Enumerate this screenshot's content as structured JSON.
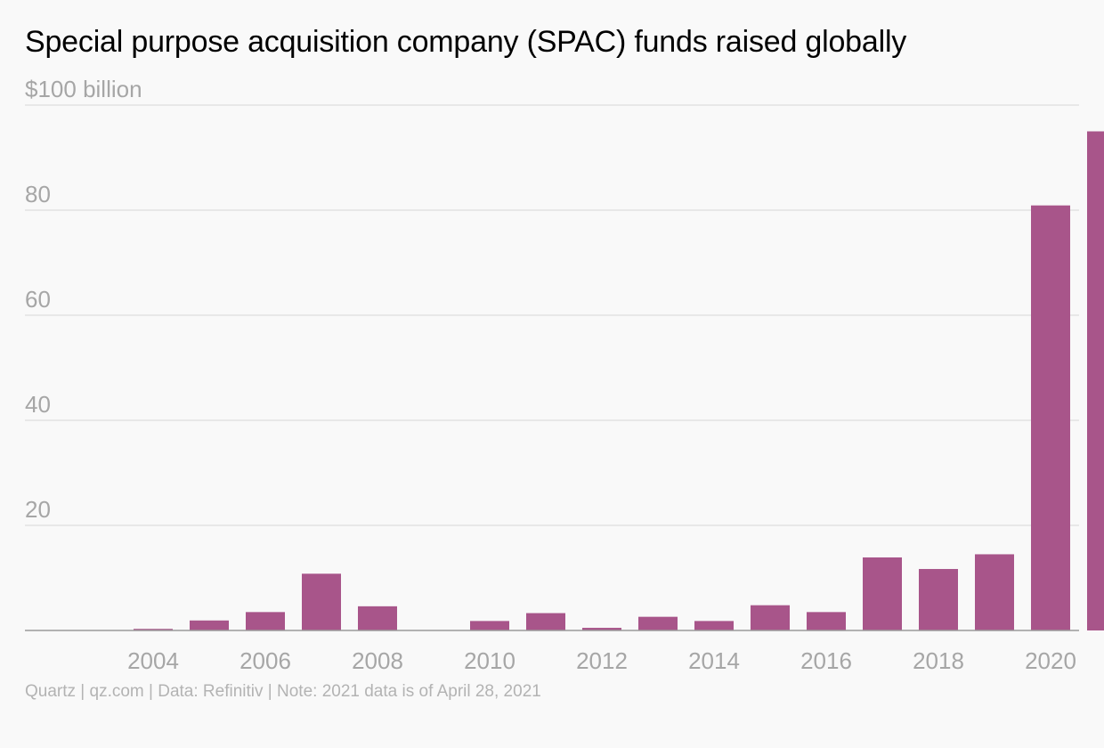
{
  "chart_data": {
    "type": "bar",
    "title": "Special purpose acquisition company (SPAC) funds raised globally",
    "ylabel": "",
    "xlabel": "",
    "ylim": [
      0,
      100
    ],
    "y_ticks": [
      {
        "value": 100,
        "label": "$100 billion"
      },
      {
        "value": 80,
        "label": "80"
      },
      {
        "value": 60,
        "label": "60"
      },
      {
        "value": 40,
        "label": "40"
      },
      {
        "value": 20,
        "label": "20"
      }
    ],
    "categories": [
      "2003",
      "2004",
      "2005",
      "2006",
      "2007",
      "2008",
      "2009",
      "2010",
      "2011",
      "2012",
      "2013",
      "2014",
      "2015",
      "2016",
      "2017",
      "2018",
      "2019",
      "2020",
      "2021"
    ],
    "x_tick_labels": [
      "2004",
      "2006",
      "2008",
      "2010",
      "2012",
      "2014",
      "2016",
      "2018",
      "2020"
    ],
    "values": [
      0,
      0.3,
      1.9,
      3.5,
      10.8,
      4.6,
      0,
      1.8,
      3.3,
      0.5,
      2.6,
      1.8,
      4.8,
      3.5,
      13.9,
      11.7,
      14.5,
      80.9,
      95.0
    ],
    "bar_color": "#a8558a",
    "grid": true,
    "legend": "none",
    "source": "Quartz | qz.com | Data: Refinitiv | Note: 2021 data is of April 28, 2021"
  }
}
